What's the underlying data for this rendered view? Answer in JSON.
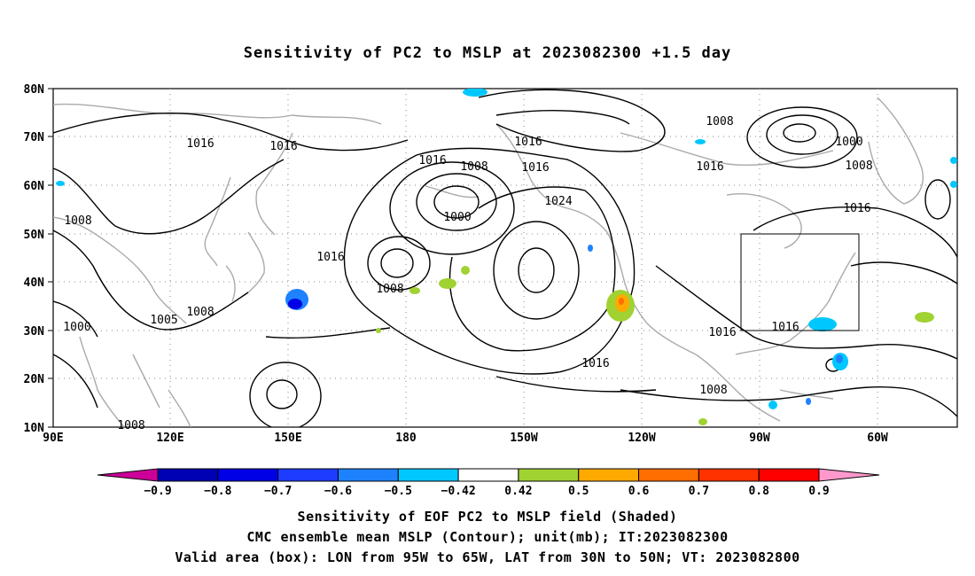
{
  "title": "Sensitivity of PC2 to MSLP at 2023082300 +1.5 day",
  "map": {
    "lat_labels": [
      "80N",
      "70N",
      "60N",
      "50N",
      "40N",
      "30N",
      "20N",
      "10N"
    ],
    "lon_labels": [
      "90E",
      "120E",
      "150E",
      "180",
      "150W",
      "120W",
      "90W",
      "60W"
    ],
    "contour_labels": [
      "1016",
      "1016",
      "1016",
      "1008",
      "1016",
      "1008",
      "1016",
      "1024",
      "1000",
      "1008",
      "1000",
      "1008",
      "1016",
      "1016",
      "1016",
      "1008",
      "1008",
      "1005",
      "1000",
      "1016",
      "1016",
      "1016",
      "1008",
      "1008"
    ],
    "valid_box": {
      "lon_west": "95W",
      "lon_east": "65W",
      "lat_south": "30N",
      "lat_north": "50N"
    }
  },
  "colorbar": {
    "labels": [
      "-0.9",
      "-0.8",
      "-0.7",
      "-0.6",
      "-0.5",
      "-0.42",
      "0.42",
      "0.5",
      "0.6",
      "0.7",
      "0.8",
      "0.9"
    ],
    "colors": [
      "#cc0099",
      "#0000b4",
      "#0000e6",
      "#1e3cff",
      "#1e82ff",
      "#00c8ff",
      "#ffffff",
      "#a0d232",
      "#ffaa00",
      "#ff6e00",
      "#ff3200",
      "#ff0000",
      "#ff99cc"
    ]
  },
  "footer": {
    "line1": "Sensitivity of EOF PC2 to MSLP field (Shaded)",
    "line2": "CMC ensemble mean MSLP (Contour); unit(mb); IT:2023082300",
    "line3": "Valid area (box): LON from 95W to 65W, LAT from 30N to 50N; VT: 2023082800"
  }
}
